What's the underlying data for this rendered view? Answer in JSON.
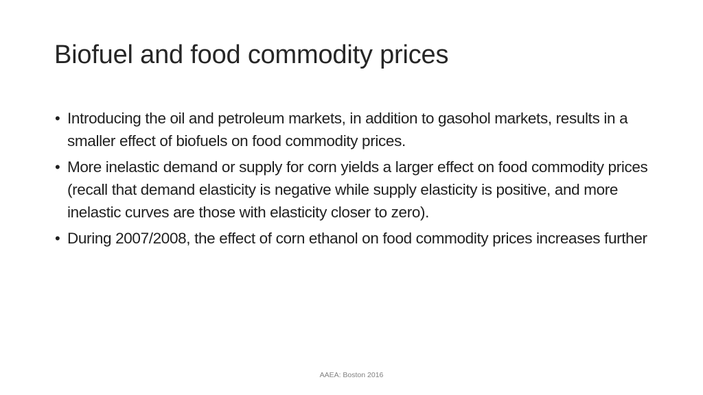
{
  "slide": {
    "title": "Biofuel and food commodity prices",
    "bullet_symbol": "•",
    "bullets": [
      "Introducing the oil and petroleum markets, in addition to gasohol markets, results in a smaller effect of biofuels on food commodity prices.",
      "More inelastic demand or supply for corn yields a larger effect on food commodity prices (recall that demand elasticity is negative while supply elasticity is positive, and more inelastic curves are those with elasticity closer to zero).",
      "During 2007/2008, the effect of corn ethanol on food commodity prices increases further"
    ],
    "footer": "AAEA: Boston 2016"
  }
}
